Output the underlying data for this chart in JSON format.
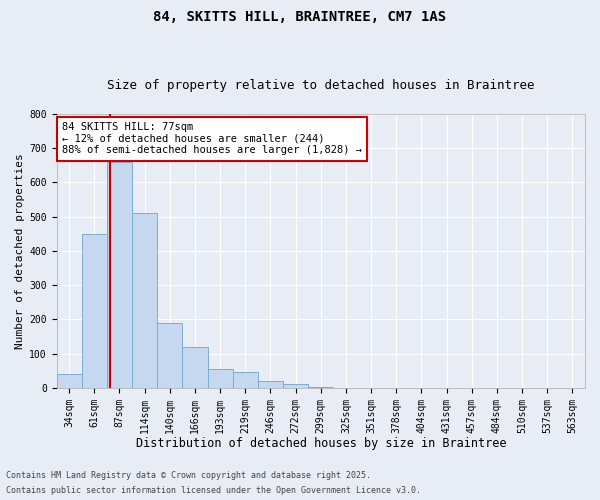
{
  "title1": "84, SKITTS HILL, BRAINTREE, CM7 1AS",
  "title2": "Size of property relative to detached houses in Braintree",
  "xlabel": "Distribution of detached houses by size in Braintree",
  "ylabel": "Number of detached properties",
  "categories": [
    "34sqm",
    "61sqm",
    "87sqm",
    "114sqm",
    "140sqm",
    "166sqm",
    "193sqm",
    "219sqm",
    "246sqm",
    "272sqm",
    "299sqm",
    "325sqm",
    "351sqm",
    "378sqm",
    "404sqm",
    "431sqm",
    "457sqm",
    "484sqm",
    "510sqm",
    "537sqm",
    "563sqm"
  ],
  "values": [
    40,
    450,
    660,
    510,
    190,
    120,
    55,
    45,
    20,
    10,
    2,
    0,
    0,
    0,
    0,
    0,
    0,
    0,
    0,
    0,
    0
  ],
  "bar_color": "#c5d8ef",
  "bar_edge_color": "#7aadd4",
  "background_color": "#e8edf5",
  "grid_color": "#ffffff",
  "vline_color": "#cc0000",
  "annotation_text": "84 SKITTS HILL: 77sqm\n← 12% of detached houses are smaller (244)\n88% of semi-detached houses are larger (1,828) →",
  "annotation_box_facecolor": "#ffffff",
  "annotation_box_edgecolor": "#cc0000",
  "footer1": "Contains HM Land Registry data © Crown copyright and database right 2025.",
  "footer2": "Contains public sector information licensed under the Open Government Licence v3.0.",
  "ylim": [
    0,
    800
  ],
  "yticks": [
    0,
    100,
    200,
    300,
    400,
    500,
    600,
    700,
    800
  ],
  "title1_fontsize": 10,
  "title2_fontsize": 9,
  "xlabel_fontsize": 8.5,
  "ylabel_fontsize": 8,
  "tick_fontsize": 7,
  "annotation_fontsize": 7.5,
  "footer_fontsize": 6
}
